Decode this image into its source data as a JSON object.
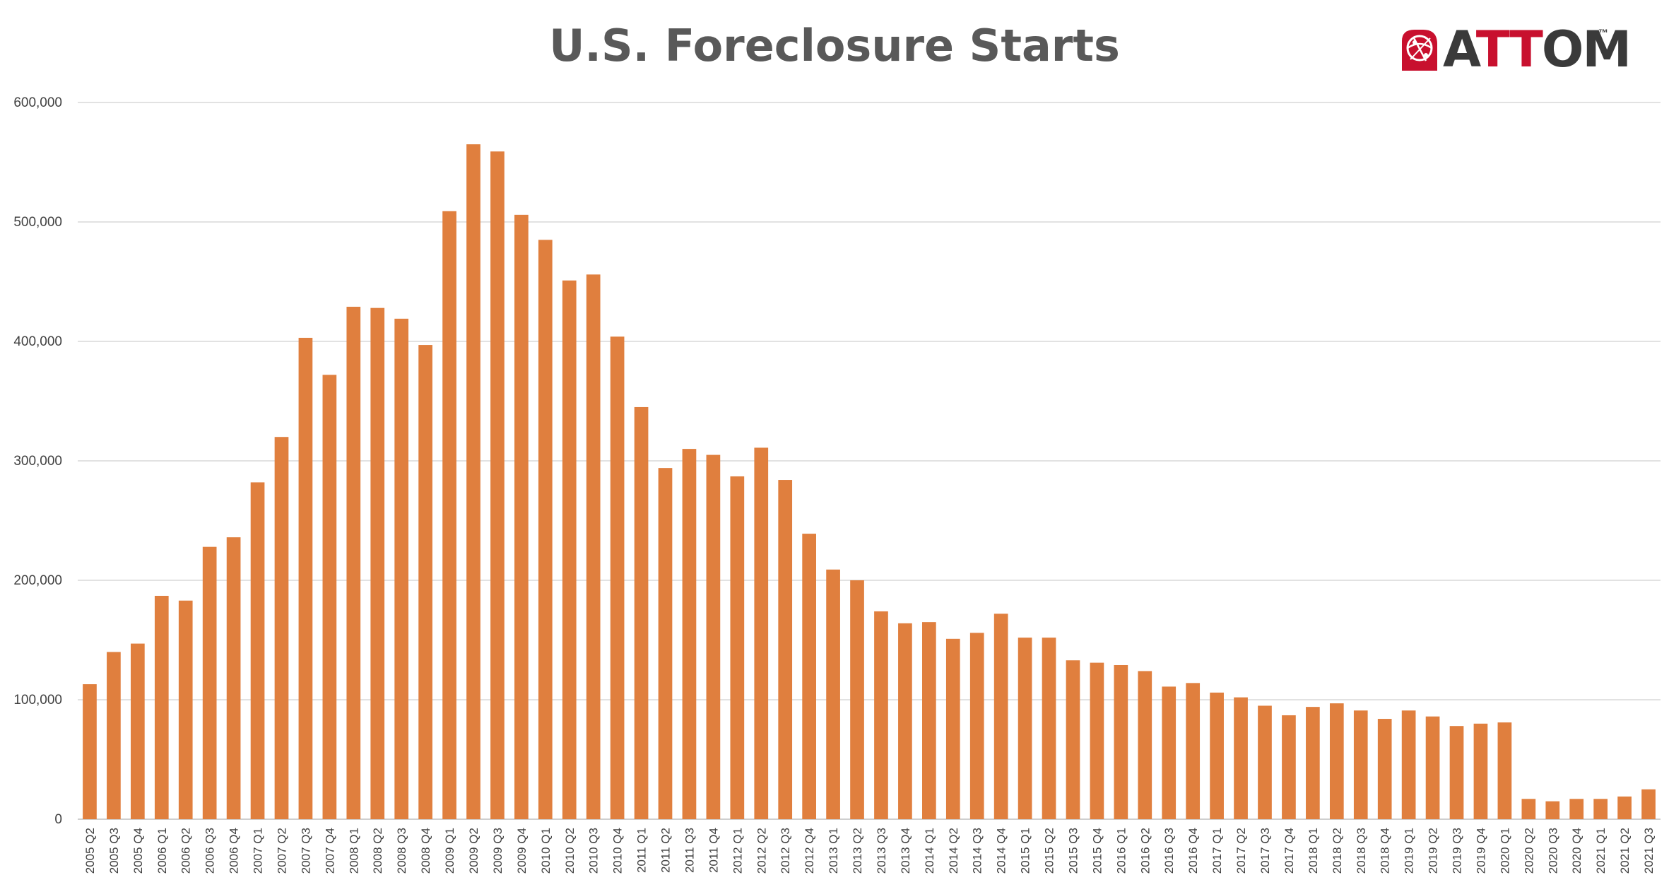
{
  "chart_data": {
    "type": "bar",
    "title": "U.S. Foreclosure Starts",
    "xlabel": "",
    "ylabel": "",
    "ylim": [
      0,
      600000
    ],
    "yticks": [
      "0",
      "100,000",
      "200,000",
      "300,000",
      "400,000",
      "500,000",
      "600,000"
    ],
    "grid": true,
    "legend": "none",
    "bar_color": "#E07F3E",
    "categories": [
      "2005 Q2",
      "2005 Q3",
      "2005 Q4",
      "2006 Q1",
      "2006 Q2",
      "2006 Q3",
      "2006 Q4",
      "2007 Q1",
      "2007 Q2",
      "2007 Q3",
      "2007 Q4",
      "2008 Q1",
      "2008 Q2",
      "2008 Q3",
      "2008 Q4",
      "2009 Q1",
      "2009 Q2",
      "2009 Q3",
      "2009 Q4",
      "2010 Q1",
      "2010 Q2",
      "2010 Q3",
      "2010 Q4",
      "2011 Q1",
      "2011 Q2",
      "2011 Q3",
      "2011 Q4",
      "2012 Q1",
      "2012 Q2",
      "2012 Q3",
      "2012 Q4",
      "2013 Q1",
      "2013 Q2",
      "2013 Q3",
      "2013 Q4",
      "2014 Q1",
      "2014 Q2",
      "2014 Q3",
      "2014 Q4",
      "2015 Q1",
      "2015 Q2",
      "2015 Q3",
      "2015 Q4",
      "2016 Q1",
      "2016 Q2",
      "2016 Q3",
      "2016 Q4",
      "2017 Q1",
      "2017 Q2",
      "2017 Q3",
      "2017 Q4",
      "2018 Q1",
      "2018 Q2",
      "2018 Q3",
      "2018 Q4",
      "2019 Q1",
      "2019 Q2",
      "2019 Q3",
      "2019 Q4",
      "2020 Q1",
      "2020 Q2",
      "2020 Q3",
      "2020 Q4",
      "2021 Q1",
      "2021 Q2",
      "2021 Q3"
    ],
    "values": [
      113000,
      140000,
      147000,
      187000,
      183000,
      228000,
      236000,
      282000,
      320000,
      403000,
      372000,
      429000,
      428000,
      419000,
      397000,
      509000,
      565000,
      559000,
      506000,
      485000,
      451000,
      456000,
      404000,
      345000,
      294000,
      310000,
      305000,
      287000,
      311000,
      284000,
      239000,
      209000,
      200000,
      174000,
      164000,
      165000,
      151000,
      156000,
      172000,
      152000,
      152000,
      133000,
      131000,
      129000,
      124000,
      111000,
      114000,
      106000,
      102000,
      95000,
      87000,
      94000,
      97000,
      91000,
      84000,
      91000,
      86000,
      78000,
      80000,
      81000,
      17000,
      15000,
      17000,
      17000,
      19000,
      25000
    ]
  },
  "logo": {
    "text_main": "A",
    "text_red": "TT",
    "text_end": "OM",
    "tm": "™",
    "mark_icon": "attom-globe-icon"
  }
}
